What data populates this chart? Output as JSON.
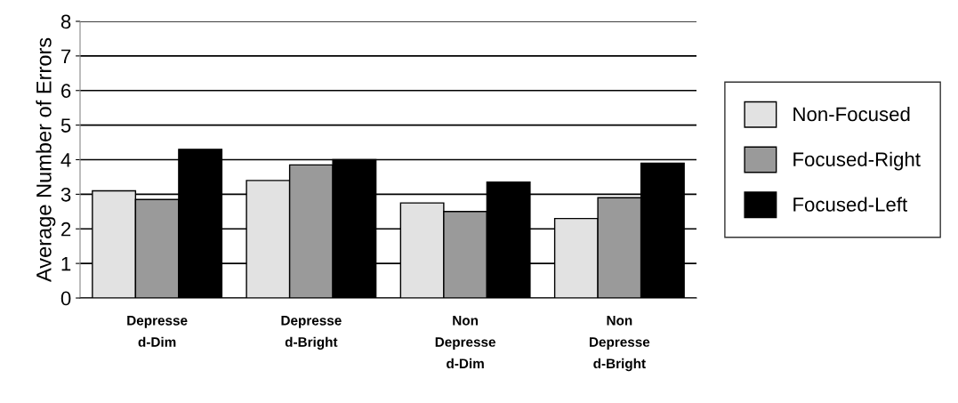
{
  "chart_data": {
    "type": "bar",
    "ylabel": "Average Number of Errors",
    "categories": [
      "Depresse\nd-Dim",
      "Depresse\nd-Bright",
      "Non\nDepresse\nd-Dim",
      "Non\nDepresse\nd-Bright"
    ],
    "series": [
      {
        "name": "Non-Focused",
        "color": "#e2e2e2",
        "values": [
          3.1,
          3.4,
          2.75,
          2.3
        ]
      },
      {
        "name": "Focused-Right",
        "color": "#9a9a9a",
        "values": [
          2.85,
          3.85,
          2.5,
          2.9
        ]
      },
      {
        "name": "Focused-Left",
        "color": "#000000",
        "values": [
          4.3,
          4.0,
          3.35,
          3.9
        ]
      }
    ],
    "ylim": [
      0,
      8
    ],
    "yticks": [
      0,
      1,
      2,
      3,
      4,
      5,
      6,
      7,
      8
    ],
    "grid": "y",
    "legend": "right"
  }
}
